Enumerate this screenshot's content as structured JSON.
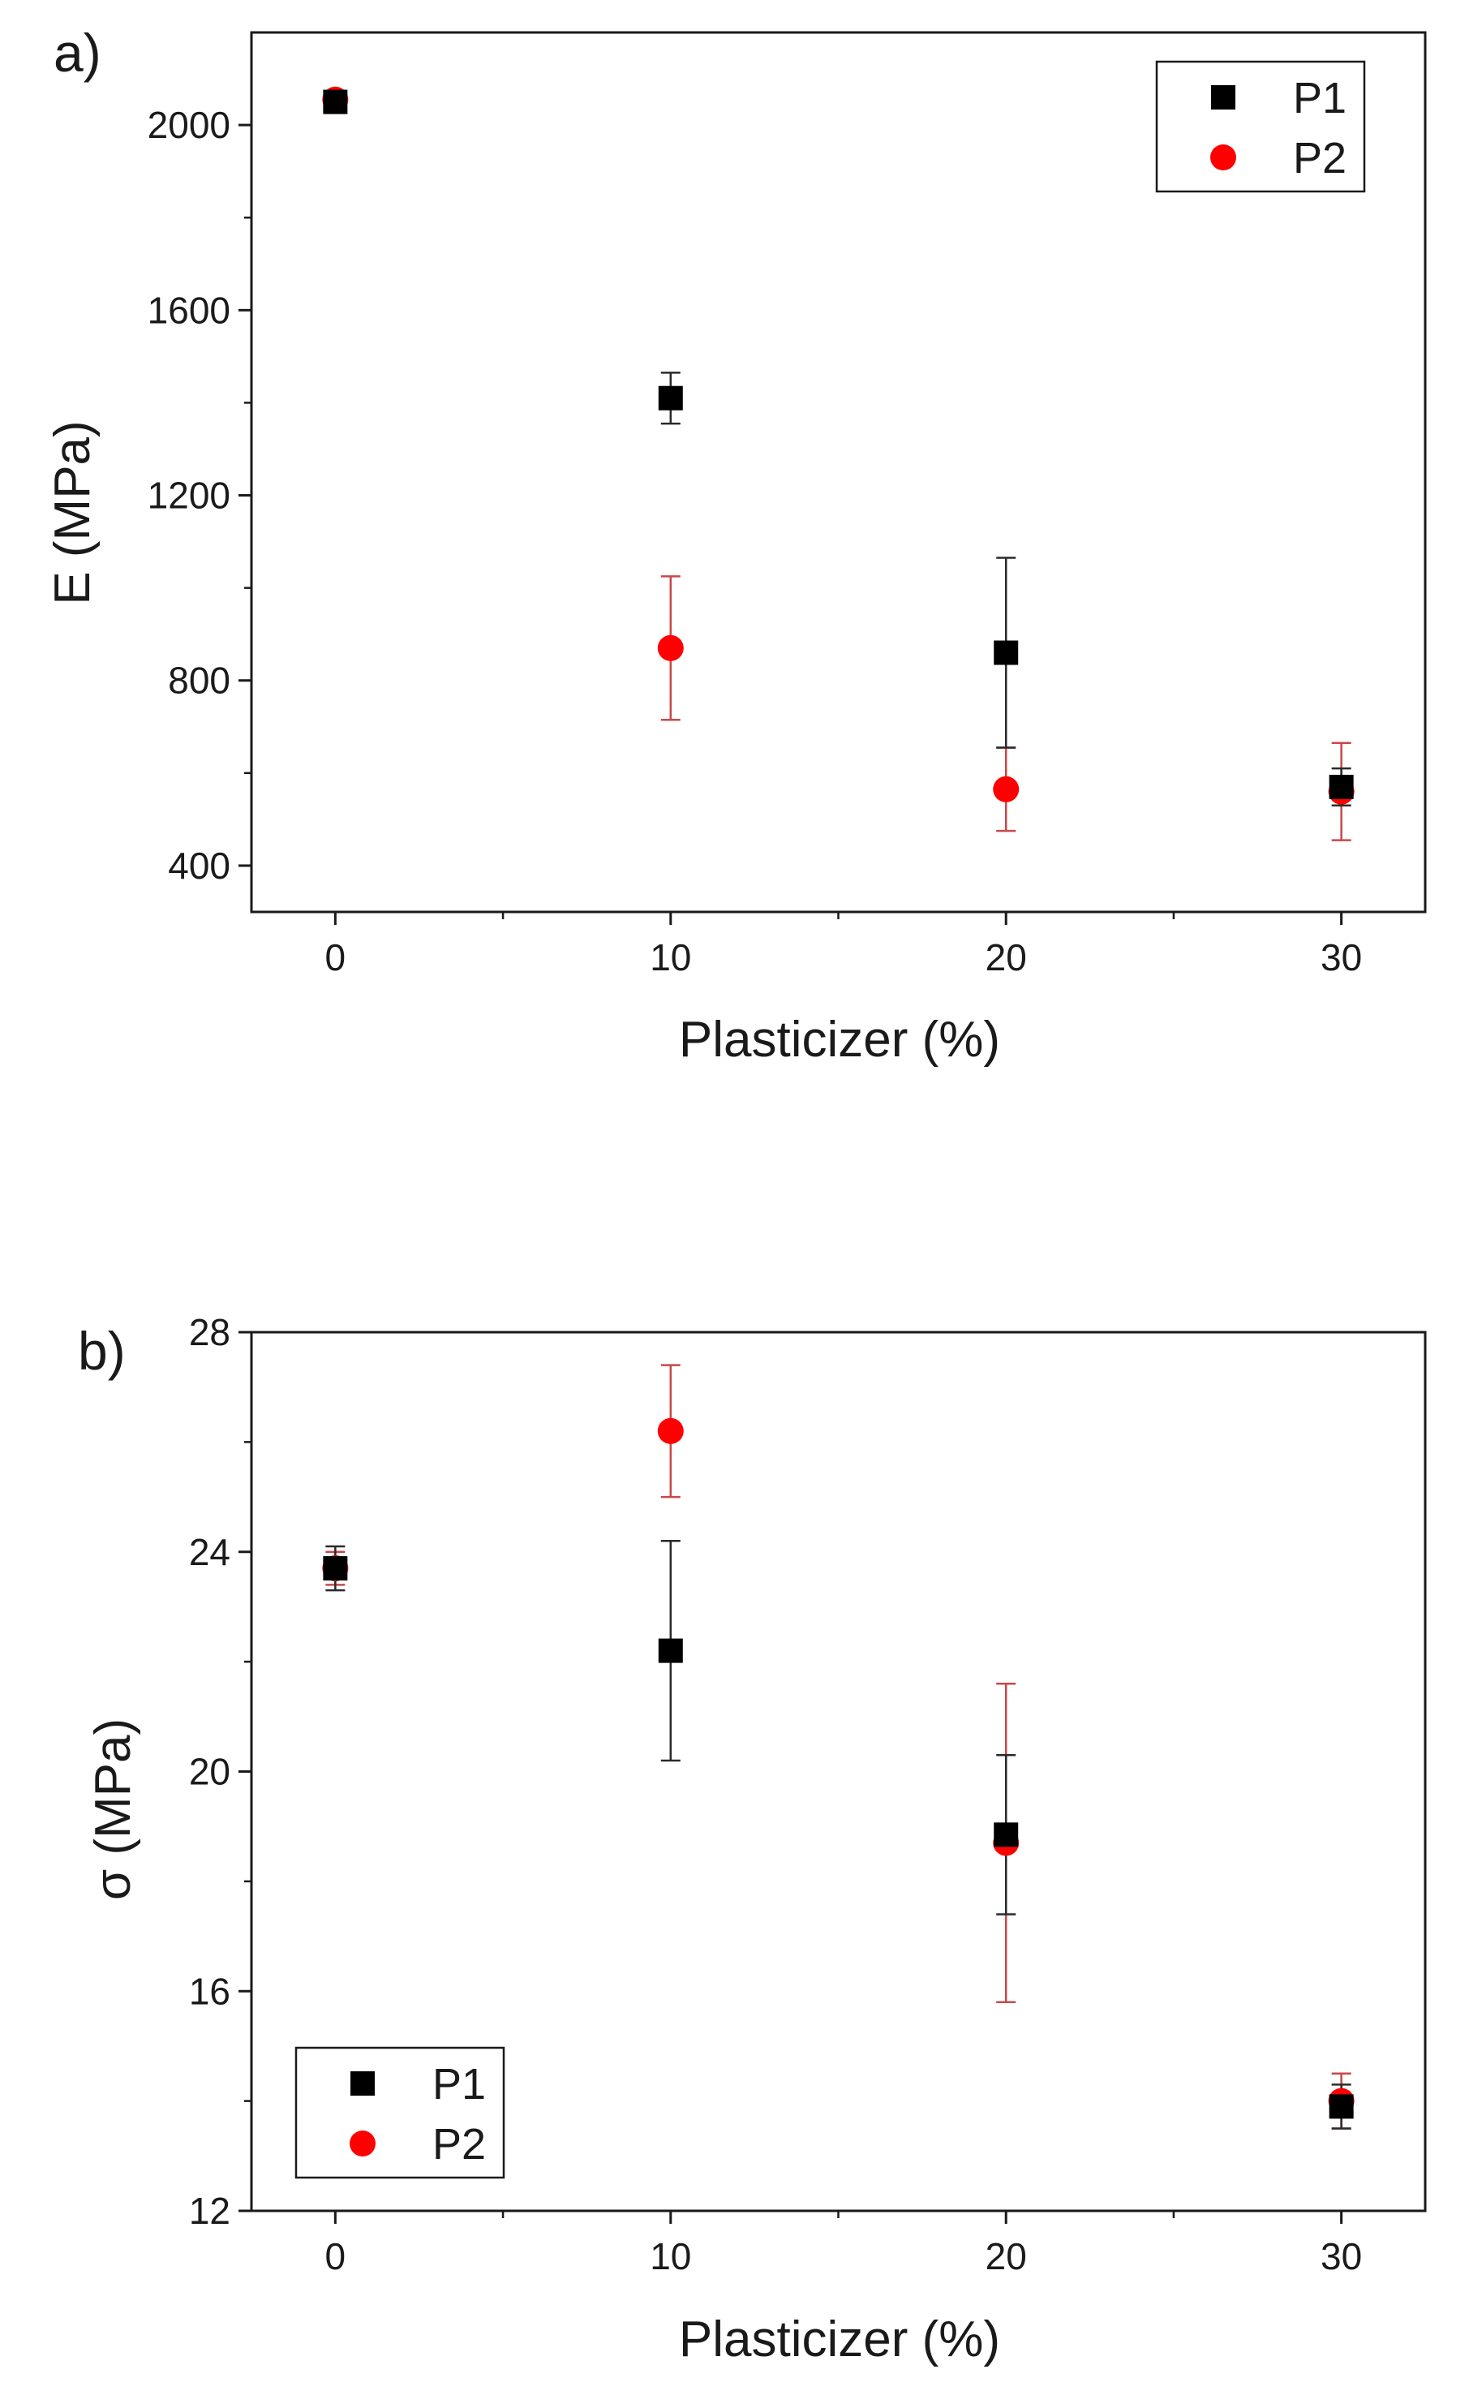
{
  "chart_data": [
    {
      "panel_label": "a)",
      "type": "scatter",
      "xlabel": "Plasticizer (%)",
      "ylabel": "E (MPa)",
      "xlim": [
        -2.5,
        32.5
      ],
      "ylim": [
        300,
        2200
      ],
      "xticks": [
        0,
        10,
        20,
        30
      ],
      "yticks": [
        400,
        800,
        1200,
        1600,
        2000
      ],
      "legend_position": "top-right",
      "series": [
        {
          "name": "P1",
          "marker": "square",
          "color": "#000000",
          "x": [
            0,
            10,
            20,
            30
          ],
          "y": [
            2050,
            1410,
            860,
            570
          ],
          "err": [
            15,
            55,
            205,
            40
          ]
        },
        {
          "name": "P2",
          "marker": "circle",
          "color": "#ff0000",
          "x": [
            0,
            10,
            20,
            30
          ],
          "y": [
            2055,
            870,
            565,
            560
          ],
          "err": [
            15,
            155,
            90,
            105
          ]
        }
      ]
    },
    {
      "panel_label": "b)",
      "type": "scatter",
      "xlabel": "Plasticizer (%)",
      "ylabel": "σ (MPa)",
      "xlim": [
        -2.5,
        32.5
      ],
      "ylim": [
        12,
        28
      ],
      "xticks": [
        0,
        10,
        20,
        30
      ],
      "yticks": [
        12,
        16,
        20,
        24,
        28
      ],
      "legend_position": "bottom-left",
      "series": [
        {
          "name": "P1",
          "marker": "square",
          "color": "#000000",
          "x": [
            0,
            10,
            20,
            30
          ],
          "y": [
            23.7,
            22.2,
            18.85,
            13.9
          ],
          "err": [
            0.4,
            2.0,
            1.45,
            0.4
          ]
        },
        {
          "name": "P2",
          "marker": "circle",
          "color": "#ff0000",
          "x": [
            0,
            10,
            20,
            30
          ],
          "y": [
            23.7,
            26.2,
            18.7,
            14.0
          ],
          "err": [
            0.3,
            1.2,
            2.9,
            0.5
          ]
        }
      ]
    }
  ]
}
